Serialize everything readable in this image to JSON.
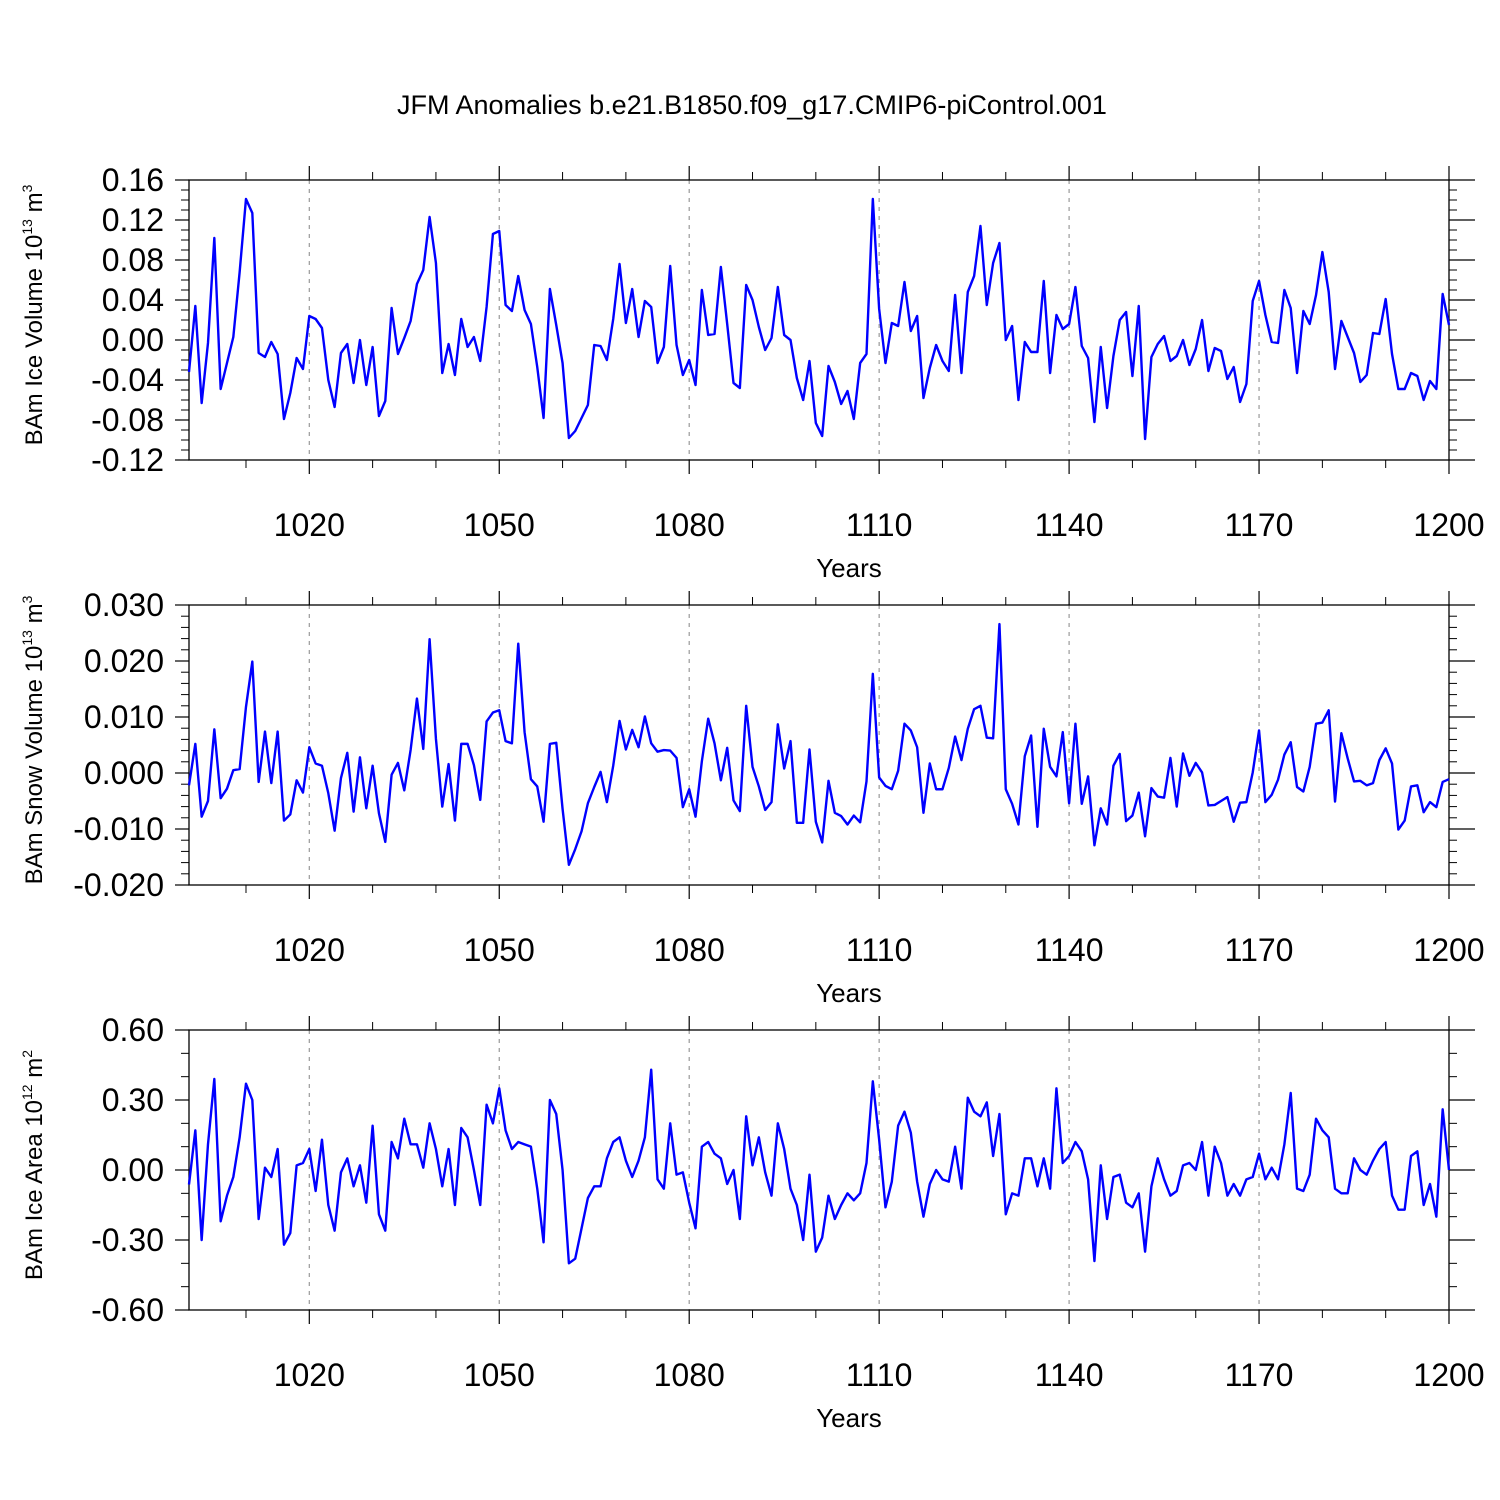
{
  "figure": {
    "title": "JFM Anomalies b.e21.B1850.f09_g17.CMIP6-piControl.001"
  },
  "style": {
    "line_color": "#0000ff",
    "grid_color": "#999999",
    "axis_color": "#000000"
  },
  "chart_data": [
    {
      "type": "line",
      "xlabel": "Years",
      "ylabel": {
        "text": "BAm Ice Volume 10",
        "power": "13",
        "unit": " m",
        "unit_power": "3"
      },
      "xlim": [
        1001,
        1200
      ],
      "ylim": [
        -0.12,
        0.16
      ],
      "xticks": [
        1020,
        1050,
        1080,
        1110,
        1140,
        1170,
        1200
      ],
      "xtick_labels": [
        "1020",
        "1050",
        "1080",
        "1110",
        "1140",
        "1170",
        "1200"
      ],
      "yticks": [
        -0.12,
        -0.08,
        -0.04,
        0.0,
        0.04,
        0.08,
        0.12,
        0.16
      ],
      "ytick_labels": [
        "-0.12",
        "-0.08",
        "-0.04",
        "0.00",
        "0.04",
        "0.08",
        "0.12",
        "0.16"
      ],
      "y_minor_step": 0.01,
      "x_minor_step": 10,
      "grid": "vertical dashed at major x ticks",
      "series": [
        {
          "values": [
            -0.032,
            0.034,
            -0.063,
            -0.003,
            0.102,
            -0.049,
            -0.023,
            0.003,
            0.068,
            0.141,
            0.127,
            -0.013,
            -0.017,
            -0.002,
            -0.014,
            -0.079,
            -0.053,
            -0.018,
            -0.029,
            0.024,
            0.021,
            0.012,
            -0.04,
            -0.067,
            -0.013,
            -0.004,
            -0.043,
            0.0,
            -0.045,
            -0.007,
            -0.076,
            -0.061,
            0.032,
            -0.014,
            0.002,
            0.019,
            0.056,
            0.07,
            0.123,
            0.077,
            -0.033,
            -0.004,
            -0.035,
            0.021,
            -0.007,
            0.003,
            -0.021,
            0.033,
            0.106,
            0.109,
            0.035,
            0.029,
            0.064,
            0.03,
            0.016,
            -0.027,
            -0.078,
            0.051,
            0.015,
            -0.023,
            -0.098,
            -0.091,
            -0.078,
            -0.065,
            -0.005,
            -0.006,
            -0.02,
            0.021,
            0.076,
            0.017,
            0.051,
            0.003,
            0.039,
            0.033,
            -0.023,
            -0.007,
            0.074,
            -0.005,
            -0.035,
            -0.02,
            -0.045,
            0.05,
            0.005,
            0.006,
            0.073,
            0.016,
            -0.043,
            -0.048,
            0.055,
            0.04,
            0.013,
            -0.01,
            0.002,
            0.053,
            0.005,
            0.0,
            -0.038,
            -0.06,
            -0.021,
            -0.083,
            -0.096,
            -0.026,
            -0.042,
            -0.064,
            -0.051,
            -0.079,
            -0.023,
            -0.014,
            0.141,
            0.031,
            -0.023,
            0.017,
            0.014,
            0.058,
            0.009,
            0.024,
            -0.058,
            -0.028,
            -0.005,
            -0.021,
            -0.031,
            0.045,
            -0.033,
            0.048,
            0.064,
            0.114,
            0.035,
            0.077,
            0.097,
            0.0,
            0.014,
            -0.06,
            -0.002,
            -0.012,
            -0.012,
            0.059,
            -0.033,
            0.025,
            0.011,
            0.016,
            0.053,
            -0.006,
            -0.018,
            -0.082,
            -0.007,
            -0.068,
            -0.016,
            0.02,
            0.028,
            -0.036,
            0.034,
            -0.099,
            -0.017,
            -0.004,
            0.004,
            -0.021,
            -0.016,
            0.0,
            -0.025,
            -0.009,
            0.02,
            -0.031,
            -0.008,
            -0.011,
            -0.039,
            -0.027,
            -0.062,
            -0.044,
            0.039,
            0.059,
            0.025,
            -0.002,
            -0.003,
            0.05,
            0.032,
            -0.033,
            0.029,
            0.016,
            0.045,
            0.088,
            0.048,
            -0.029,
            0.019,
            0.003,
            -0.013,
            -0.042,
            -0.035,
            0.007,
            0.006,
            0.041,
            -0.014,
            -0.049,
            -0.049,
            -0.033,
            -0.036,
            -0.06,
            -0.041,
            -0.049,
            0.046,
            0.015
          ]
        }
      ]
    },
    {
      "type": "line",
      "xlabel": "Years",
      "ylabel": {
        "text": "BAm Snow Volume 10",
        "power": "13",
        "unit": " m",
        "unit_power": "3"
      },
      "xlim": [
        1001,
        1200
      ],
      "ylim": [
        -0.02,
        0.03
      ],
      "xticks": [
        1020,
        1050,
        1080,
        1110,
        1140,
        1170,
        1200
      ],
      "xtick_labels": [
        "1020",
        "1050",
        "1080",
        "1110",
        "1140",
        "1170",
        "1200"
      ],
      "yticks": [
        -0.02,
        -0.01,
        0.0,
        0.01,
        0.02,
        0.03
      ],
      "ytick_labels": [
        "-0.020",
        "-0.010",
        "0.000",
        "0.010",
        "0.020",
        "0.030"
      ],
      "y_minor_step": 0.002,
      "x_minor_step": 10,
      "grid": "vertical dashed at major x ticks",
      "series": [
        {
          "values": [
            -0.0022,
            0.0052,
            -0.0078,
            -0.005,
            0.0078,
            -0.0045,
            -0.0028,
            0.0005,
            0.0007,
            0.0118,
            0.0199,
            -0.0016,
            0.0074,
            -0.0018,
            0.0074,
            -0.0085,
            -0.0074,
            -0.0013,
            -0.0035,
            0.0046,
            0.0017,
            0.0013,
            -0.0036,
            -0.0103,
            -0.0009,
            0.0036,
            -0.0069,
            0.0028,
            -0.0063,
            0.0013,
            -0.0072,
            -0.0123,
            -0.0003,
            0.0018,
            -0.0031,
            0.0041,
            0.0133,
            0.0043,
            0.0239,
            0.0061,
            -0.006,
            0.0016,
            -0.0085,
            0.0052,
            0.0052,
            0.0014,
            -0.0048,
            0.0092,
            0.0108,
            0.0112,
            0.0057,
            0.0053,
            0.0231,
            0.0073,
            -0.0011,
            -0.0024,
            -0.0087,
            0.0052,
            0.0054,
            -0.0064,
            -0.0164,
            -0.0136,
            -0.0104,
            -0.0054,
            -0.0025,
            0.0002,
            -0.0052,
            0.0013,
            0.0093,
            0.0042,
            0.0077,
            0.0046,
            0.0101,
            0.0053,
            0.0038,
            0.0041,
            0.004,
            0.0027,
            -0.0061,
            -0.0029,
            -0.0078,
            0.0021,
            0.0097,
            0.0053,
            -0.0013,
            0.0045,
            -0.0049,
            -0.0068,
            0.012,
            0.0011,
            -0.0024,
            -0.0066,
            -0.0052,
            0.0087,
            0.0008,
            0.0057,
            -0.0089,
            -0.0089,
            0.0042,
            -0.0087,
            -0.0124,
            -0.0014,
            -0.0071,
            -0.0077,
            -0.0092,
            -0.0076,
            -0.0088,
            -0.0015,
            0.0177,
            -0.0008,
            -0.0023,
            -0.0029,
            0.0004,
            0.0088,
            0.0076,
            0.0046,
            -0.0071,
            0.0017,
            -0.0029,
            -0.0029,
            0.0009,
            0.0065,
            0.0023,
            0.0079,
            0.0114,
            0.012,
            0.0063,
            0.0062,
            0.0266,
            -0.0029,
            -0.0055,
            -0.0092,
            0.003,
            0.0067,
            -0.0096,
            0.0079,
            0.0011,
            -0.0006,
            0.0073,
            -0.0054,
            0.0088,
            -0.0055,
            -0.0006,
            -0.0129,
            -0.0063,
            -0.0092,
            0.0013,
            0.0034,
            -0.0086,
            -0.0076,
            -0.0035,
            -0.0113,
            -0.0027,
            -0.0042,
            -0.0044,
            0.0027,
            -0.006,
            0.0035,
            -0.0005,
            0.0018,
            0.0001,
            -0.0058,
            -0.0057,
            -0.005,
            -0.0043,
            -0.0087,
            -0.0053,
            -0.0052,
            0.0001,
            0.0076,
            -0.0052,
            -0.0039,
            -0.0012,
            0.0033,
            0.0055,
            -0.0025,
            -0.0033,
            0.0011,
            0.0088,
            0.009,
            0.0112,
            -0.0051,
            0.0071,
            0.0026,
            -0.0015,
            -0.0014,
            -0.0022,
            -0.0018,
            0.0023,
            0.0044,
            0.0017,
            -0.0101,
            -0.0085,
            -0.0024,
            -0.0022,
            -0.007,
            -0.0052,
            -0.0061,
            -0.0016,
            -0.0011
          ]
        }
      ]
    },
    {
      "type": "line",
      "xlabel": "Years",
      "ylabel": {
        "text": "BAm Ice Area 10",
        "power": "12",
        "unit": " m",
        "unit_power": "2"
      },
      "xlim": [
        1001,
        1200
      ],
      "ylim": [
        -0.6,
        0.6
      ],
      "xticks": [
        1020,
        1050,
        1080,
        1110,
        1140,
        1170,
        1200
      ],
      "xtick_labels": [
        "1020",
        "1050",
        "1080",
        "1110",
        "1140",
        "1170",
        "1200"
      ],
      "yticks": [
        -0.6,
        -0.3,
        0.0,
        0.3,
        0.6
      ],
      "ytick_labels": [
        "-0.60",
        "-0.30",
        "0.00",
        "0.30",
        "0.60"
      ],
      "y_minor_step": 0.1,
      "x_minor_step": 10,
      "grid": "vertical dashed at major x ticks",
      "series": [
        {
          "values": [
            -0.062,
            0.17,
            -0.3,
            0.11,
            0.39,
            -0.22,
            -0.11,
            -0.03,
            0.14,
            0.37,
            0.3,
            -0.21,
            0.01,
            -0.03,
            0.09,
            -0.32,
            -0.27,
            0.02,
            0.03,
            0.09,
            -0.09,
            0.13,
            -0.15,
            -0.26,
            -0.01,
            0.05,
            -0.07,
            0.02,
            -0.14,
            0.19,
            -0.19,
            -0.26,
            0.12,
            0.05,
            0.22,
            0.11,
            0.11,
            0.01,
            0.2,
            0.09,
            -0.07,
            0.09,
            -0.15,
            0.18,
            0.14,
            0.0,
            -0.15,
            0.28,
            0.2,
            0.35,
            0.17,
            0.09,
            0.12,
            0.11,
            0.1,
            -0.08,
            -0.31,
            0.3,
            0.24,
            0.0,
            -0.4,
            -0.38,
            -0.25,
            -0.12,
            -0.07,
            -0.07,
            0.05,
            0.12,
            0.14,
            0.04,
            -0.03,
            0.04,
            0.14,
            0.43,
            -0.04,
            -0.08,
            0.2,
            -0.02,
            -0.01,
            -0.14,
            -0.25,
            0.1,
            0.12,
            0.07,
            0.05,
            -0.06,
            0.0,
            -0.21,
            0.23,
            0.02,
            0.14,
            -0.01,
            -0.11,
            0.2,
            0.09,
            -0.08,
            -0.15,
            -0.3,
            -0.02,
            -0.35,
            -0.29,
            -0.11,
            -0.21,
            -0.15,
            -0.1,
            -0.13,
            -0.1,
            0.03,
            0.38,
            0.13,
            -0.16,
            -0.05,
            0.19,
            0.25,
            0.16,
            -0.05,
            -0.2,
            -0.06,
            0.0,
            -0.04,
            -0.05,
            0.1,
            -0.08,
            0.31,
            0.25,
            0.23,
            0.29,
            0.06,
            0.24,
            -0.19,
            -0.1,
            -0.11,
            0.05,
            0.05,
            -0.07,
            0.05,
            -0.08,
            0.35,
            0.03,
            0.06,
            0.12,
            0.08,
            -0.04,
            -0.39,
            0.02,
            -0.21,
            -0.03,
            -0.02,
            -0.14,
            -0.16,
            -0.1,
            -0.35,
            -0.07,
            0.05,
            -0.04,
            -0.11,
            -0.09,
            0.02,
            0.03,
            0.0,
            0.12,
            -0.11,
            0.1,
            0.03,
            -0.11,
            -0.06,
            -0.11,
            -0.04,
            -0.03,
            0.07,
            -0.04,
            0.01,
            -0.04,
            0.11,
            0.33,
            -0.08,
            -0.09,
            -0.02,
            0.22,
            0.17,
            0.14,
            -0.08,
            -0.1,
            -0.1,
            0.05,
            0.0,
            -0.02,
            0.04,
            0.09,
            0.12,
            -0.11,
            -0.17,
            -0.17,
            0.06,
            0.08,
            -0.15,
            -0.06,
            -0.2,
            0.26,
            0.0
          ]
        }
      ]
    }
  ]
}
